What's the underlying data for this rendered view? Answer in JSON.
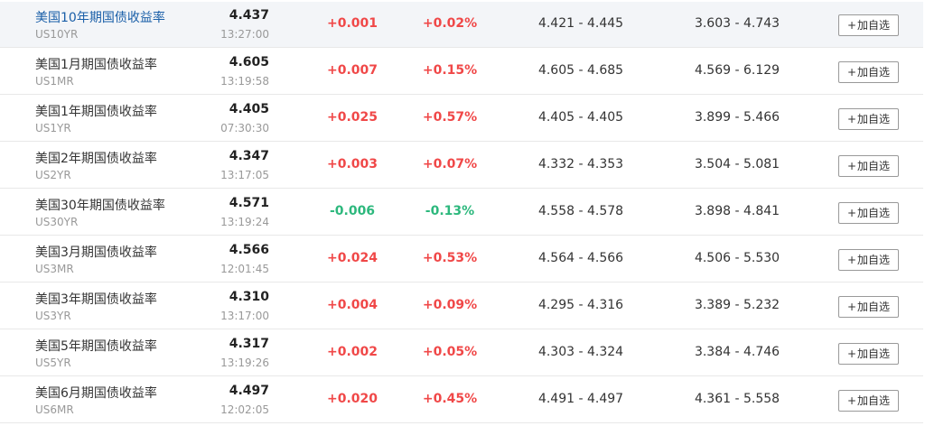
{
  "add_button_label": "加自选",
  "add_button_plus": "+",
  "colors": {
    "up": "#f04848",
    "down": "#2db87d",
    "hover_row_bg": "#f3f5f8",
    "hover_name": "#1a5fa8"
  },
  "rows": [
    {
      "name": "美国10年期国债收益率",
      "code": "US10YR",
      "price": "4.437",
      "time": "13:27:00",
      "change": "+0.001",
      "pct": "+0.02%",
      "day_range": "4.421 - 4.445",
      "year_range": "3.603 - 4.743",
      "direction": "up",
      "highlighted": true
    },
    {
      "name": "美国1月期国债收益率",
      "code": "US1MR",
      "price": "4.605",
      "time": "13:19:58",
      "change": "+0.007",
      "pct": "+0.15%",
      "day_range": "4.605 - 4.685",
      "year_range": "4.569 - 6.129",
      "direction": "up",
      "highlighted": false
    },
    {
      "name": "美国1年期国债收益率",
      "code": "US1YR",
      "price": "4.405",
      "time": "07:30:30",
      "change": "+0.025",
      "pct": "+0.57%",
      "day_range": "4.405 - 4.405",
      "year_range": "3.899 - 5.466",
      "direction": "up",
      "highlighted": false
    },
    {
      "name": "美国2年期国债收益率",
      "code": "US2YR",
      "price": "4.347",
      "time": "13:17:05",
      "change": "+0.003",
      "pct": "+0.07%",
      "day_range": "4.332 - 4.353",
      "year_range": "3.504 - 5.081",
      "direction": "up",
      "highlighted": false
    },
    {
      "name": "美国30年期国债收益率",
      "code": "US30YR",
      "price": "4.571",
      "time": "13:19:24",
      "change": "-0.006",
      "pct": "-0.13%",
      "day_range": "4.558 - 4.578",
      "year_range": "3.898 - 4.841",
      "direction": "down",
      "highlighted": false
    },
    {
      "name": "美国3月期国债收益率",
      "code": "US3MR",
      "price": "4.566",
      "time": "12:01:45",
      "change": "+0.024",
      "pct": "+0.53%",
      "day_range": "4.564 - 4.566",
      "year_range": "4.506 - 5.530",
      "direction": "up",
      "highlighted": false
    },
    {
      "name": "美国3年期国债收益率",
      "code": "US3YR",
      "price": "4.310",
      "time": "13:17:00",
      "change": "+0.004",
      "pct": "+0.09%",
      "day_range": "4.295 - 4.316",
      "year_range": "3.389 - 5.232",
      "direction": "up",
      "highlighted": false
    },
    {
      "name": "美国5年期国债收益率",
      "code": "US5YR",
      "price": "4.317",
      "time": "13:19:26",
      "change": "+0.002",
      "pct": "+0.05%",
      "day_range": "4.303 - 4.324",
      "year_range": "3.384 - 4.746",
      "direction": "up",
      "highlighted": false
    },
    {
      "name": "美国6月期国债收益率",
      "code": "US6MR",
      "price": "4.497",
      "time": "12:02:05",
      "change": "+0.020",
      "pct": "+0.45%",
      "day_range": "4.491 - 4.497",
      "year_range": "4.361 - 5.558",
      "direction": "up",
      "highlighted": false
    }
  ]
}
